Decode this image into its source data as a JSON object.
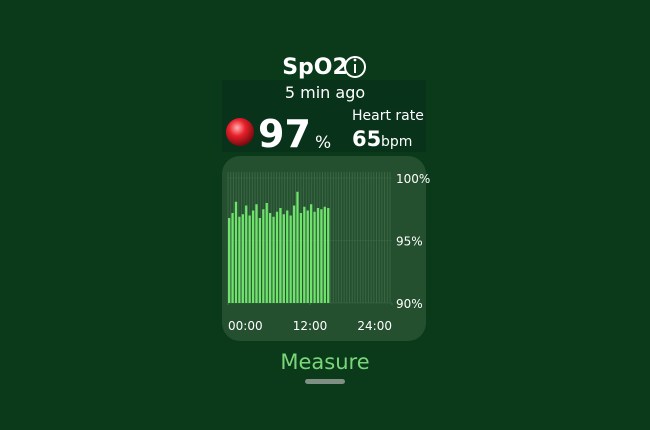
{
  "header": {
    "title": "SpO2",
    "subtitle": "5 min ago"
  },
  "reading": {
    "value": 97,
    "unit": "%"
  },
  "heart_rate": {
    "label": "Heart rate",
    "value": 65,
    "unit": "bpm"
  },
  "chart": {
    "type": "bar",
    "color": "#6fe36b",
    "x": [
      0,
      0.5,
      1,
      1.5,
      2,
      2.5,
      3,
      3.5,
      4,
      4.5,
      5,
      5.5,
      6,
      6.5,
      7,
      7.5,
      8,
      8.5,
      9,
      9.5,
      10,
      10.5,
      11,
      11.5,
      12,
      12.5,
      13,
      13.5,
      14,
      14.5
    ],
    "values": [
      96.8,
      97.2,
      98.1,
      96.9,
      97.1,
      97.8,
      97.0,
      97.4,
      97.9,
      96.8,
      97.5,
      98.0,
      97.2,
      96.9,
      97.3,
      97.6,
      97.1,
      97.4,
      97.0,
      97.8,
      98.9,
      97.2,
      97.7,
      97.4,
      97.9,
      97.3,
      97.6,
      97.5,
      97.7,
      97.6
    ],
    "xlim": [
      0,
      24
    ],
    "xticks": [
      {
        "value": 0,
        "label": "00:00"
      },
      {
        "value": 12,
        "label": "12:00"
      },
      {
        "value": 24,
        "label": "24:00"
      }
    ],
    "ylim": [
      90,
      100
    ],
    "yticks": [
      {
        "value": 100,
        "label": "100%"
      },
      {
        "value": 95,
        "label": "95%"
      },
      {
        "value": 90,
        "label": "90%"
      }
    ]
  },
  "button": {
    "label": "Measure"
  }
}
